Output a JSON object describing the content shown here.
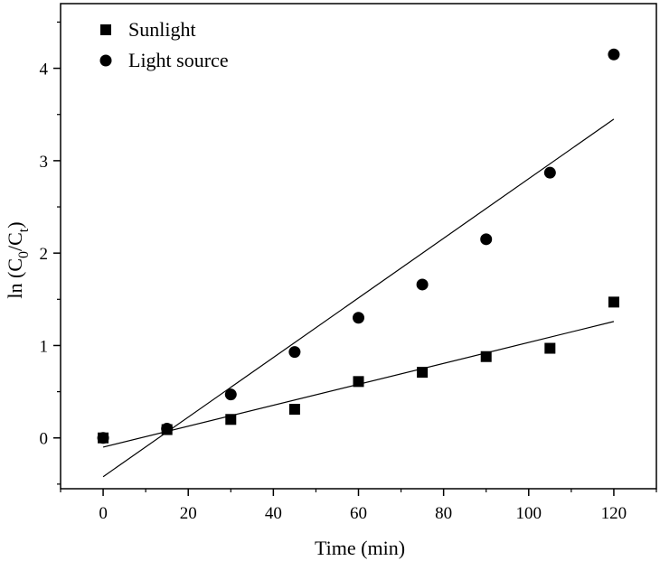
{
  "chart_data": {
    "type": "scatter",
    "title": "",
    "xlabel": "Time (min)",
    "ylabel_parts": {
      "prefix": "ln (C",
      "sub1": "0",
      "mid": "/C",
      "sub2": "t",
      "suffix": ")"
    },
    "xlim": [
      -10,
      130
    ],
    "ylim": [
      -0.55,
      4.7
    ],
    "xticks": [
      0,
      20,
      40,
      60,
      80,
      100,
      120
    ],
    "yticks": [
      0,
      1,
      2,
      3,
      4
    ],
    "grid": false,
    "legend_position": "top-left",
    "series": [
      {
        "name": "Sunlight",
        "marker": "square",
        "x": [
          0,
          15,
          30,
          45,
          60,
          75,
          90,
          105,
          120
        ],
        "y": [
          0,
          0.09,
          0.2,
          0.31,
          0.61,
          0.71,
          0.88,
          0.97,
          1.47
        ],
        "fit": {
          "x": [
            0,
            120
          ],
          "y": [
            -0.1,
            1.26
          ]
        }
      },
      {
        "name": "Light source",
        "marker": "circle",
        "x": [
          0,
          15,
          30,
          45,
          60,
          75,
          90,
          105,
          120
        ],
        "y": [
          0,
          0.1,
          0.47,
          0.93,
          1.3,
          1.66,
          2.15,
          2.87,
          4.15
        ],
        "fit": {
          "x": [
            0,
            120
          ],
          "y": [
            -0.42,
            3.45
          ]
        }
      }
    ]
  }
}
